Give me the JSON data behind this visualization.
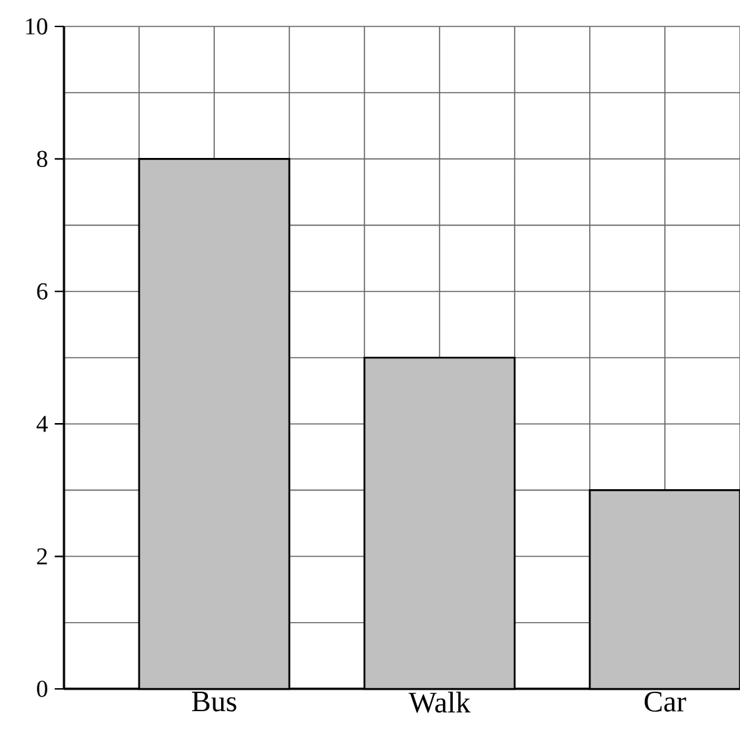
{
  "chart_data": {
    "type": "bar",
    "categories": [
      "Bus",
      "Walk",
      "Car"
    ],
    "values": [
      8,
      5,
      3
    ],
    "color": "#c0c0c0",
    "ylim": [
      0,
      10
    ],
    "yticks": [
      0,
      2,
      4,
      6,
      8,
      10
    ],
    "grid": true
  }
}
